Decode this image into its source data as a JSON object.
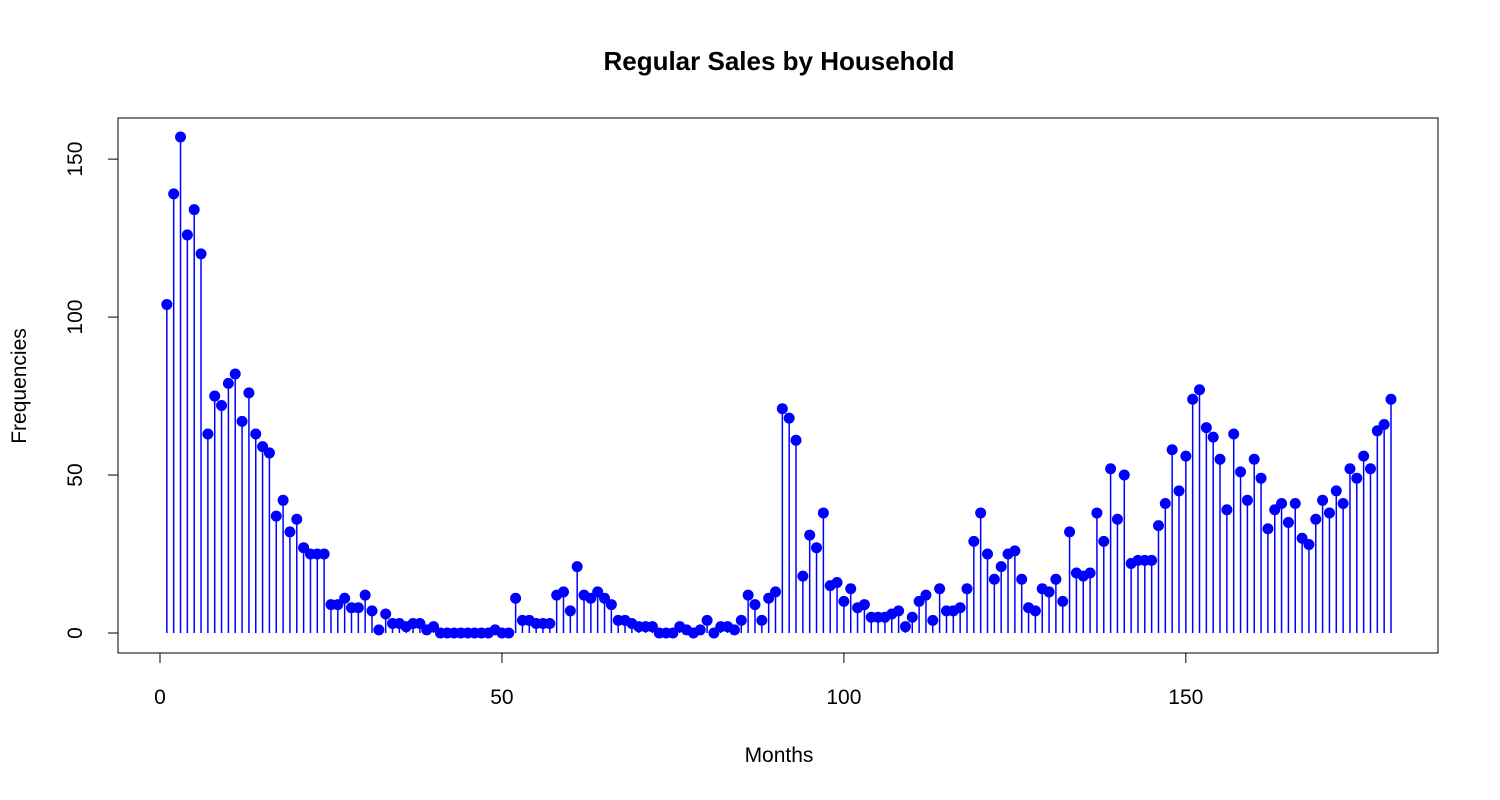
{
  "chart_data": {
    "type": "scatter",
    "style": "lollipop",
    "title": "Regular Sales by Household",
    "xlabel": "Months",
    "ylabel": "Frequencies",
    "xlim": [
      1,
      180
    ],
    "ylim": [
      0,
      157
    ],
    "xticks": [
      0,
      50,
      100,
      150
    ],
    "yticks": [
      0,
      50,
      100,
      150
    ],
    "grid": false,
    "color": "#0000ff",
    "x": [
      1,
      2,
      3,
      4,
      5,
      6,
      7,
      8,
      9,
      10,
      11,
      12,
      13,
      14,
      15,
      16,
      17,
      18,
      19,
      20,
      21,
      22,
      23,
      24,
      25,
      26,
      27,
      28,
      29,
      30,
      31,
      32,
      33,
      34,
      35,
      36,
      37,
      38,
      39,
      40,
      41,
      42,
      43,
      44,
      45,
      46,
      47,
      48,
      49,
      50,
      51,
      52,
      53,
      54,
      55,
      56,
      57,
      58,
      59,
      60,
      61,
      62,
      63,
      64,
      65,
      66,
      67,
      68,
      69,
      70,
      71,
      72,
      73,
      74,
      75,
      76,
      77,
      78,
      79,
      80,
      81,
      82,
      83,
      84,
      85,
      86,
      87,
      88,
      89,
      90,
      91,
      92,
      93,
      94,
      95,
      96,
      97,
      98,
      99,
      100,
      101,
      102,
      103,
      104,
      105,
      106,
      107,
      108,
      109,
      110,
      111,
      112,
      113,
      114,
      115,
      116,
      117,
      118,
      119,
      120,
      121,
      122,
      123,
      124,
      125,
      126,
      127,
      128,
      129,
      130,
      131,
      132,
      133,
      134,
      135,
      136,
      137,
      138,
      139,
      140,
      141,
      142,
      143,
      144,
      145,
      146,
      147,
      148,
      149,
      150,
      151,
      152,
      153,
      154,
      155,
      156,
      157,
      158,
      159,
      160,
      161,
      162,
      163,
      164,
      165,
      166,
      167,
      168,
      169,
      170,
      171,
      172,
      173,
      174,
      175,
      176,
      177,
      178,
      179,
      180
    ],
    "y": [
      104,
      139,
      157,
      126,
      134,
      120,
      63,
      75,
      72,
      79,
      82,
      67,
      76,
      63,
      59,
      57,
      37,
      42,
      32,
      36,
      27,
      25,
      25,
      25,
      9,
      9,
      11,
      8,
      8,
      12,
      7,
      1,
      6,
      3,
      3,
      2,
      3,
      3,
      1,
      2,
      0,
      0,
      0,
      0,
      0,
      0,
      0,
      0,
      1,
      0,
      0,
      11,
      4,
      4,
      3,
      3,
      3,
      12,
      13,
      7,
      21,
      12,
      11,
      13,
      11,
      9,
      4,
      4,
      3,
      2,
      2,
      2,
      0,
      0,
      0,
      2,
      1,
      0,
      1,
      4,
      0,
      2,
      2,
      1,
      4,
      12,
      9,
      4,
      11,
      13,
      71,
      68,
      61,
      18,
      31,
      27,
      38,
      15,
      16,
      10,
      14,
      8,
      9,
      5,
      5,
      5,
      6,
      7,
      2,
      5,
      10,
      12,
      4,
      14,
      7,
      7,
      8,
      14,
      29,
      38,
      25,
      17,
      21,
      25,
      26,
      17,
      8,
      7,
      14,
      13,
      17,
      10,
      32,
      19,
      18,
      19,
      38,
      29,
      52,
      36,
      50,
      22,
      23,
      23,
      23,
      34,
      41,
      58,
      45,
      56,
      74,
      77,
      65,
      62,
      55,
      39,
      63,
      51,
      42,
      55,
      49,
      33,
      39,
      41,
      35,
      41,
      30,
      28,
      36,
      42,
      38,
      45,
      41,
      52,
      49,
      56,
      52,
      64,
      66,
      74
    ]
  }
}
